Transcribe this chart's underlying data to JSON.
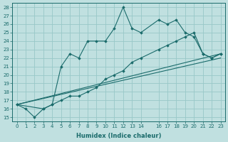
{
  "xlabel": "Humidex (Indice chaleur)",
  "bg_color": "#c0e0e0",
  "grid_color": "#98c8c8",
  "line_color": "#1a6b6b",
  "xlim": [
    -0.5,
    23.5
  ],
  "ylim": [
    14.5,
    28.5
  ],
  "xticks": [
    0,
    1,
    2,
    3,
    4,
    5,
    6,
    7,
    8,
    9,
    10,
    11,
    12,
    13,
    14,
    16,
    17,
    18,
    19,
    20,
    21,
    22,
    23
  ],
  "yticks": [
    15,
    16,
    17,
    18,
    19,
    20,
    21,
    22,
    23,
    24,
    25,
    26,
    27,
    28
  ],
  "line1": {
    "x": [
      0,
      1,
      2,
      3,
      4,
      5,
      6,
      7,
      8,
      9,
      10,
      11,
      12,
      13,
      14,
      16,
      17,
      18,
      19,
      20,
      21,
      22,
      23
    ],
    "y": [
      16.5,
      16.0,
      15.0,
      16.0,
      16.5,
      21.0,
      22.5,
      22.0,
      24.0,
      24.0,
      24.0,
      25.5,
      28.0,
      25.5,
      25.0,
      26.5,
      26.0,
      26.5,
      25.0,
      24.5,
      22.5,
      22.0,
      22.5
    ]
  },
  "line2": {
    "x": [
      0,
      3,
      4,
      5,
      6,
      7,
      8,
      9,
      10,
      11,
      12,
      13,
      14,
      16,
      17,
      18,
      19,
      20,
      21,
      22,
      23
    ],
    "y": [
      16.5,
      16.0,
      16.5,
      17.0,
      17.5,
      17.5,
      18.0,
      18.5,
      19.5,
      20.0,
      20.5,
      21.5,
      22.0,
      23.0,
      23.5,
      24.0,
      24.5,
      25.0,
      22.5,
      22.0,
      22.5
    ]
  },
  "line3": {
    "x": [
      0,
      23
    ],
    "y": [
      16.5,
      22.5
    ]
  },
  "line4": {
    "x": [
      0,
      23
    ],
    "y": [
      16.5,
      22.0
    ]
  }
}
